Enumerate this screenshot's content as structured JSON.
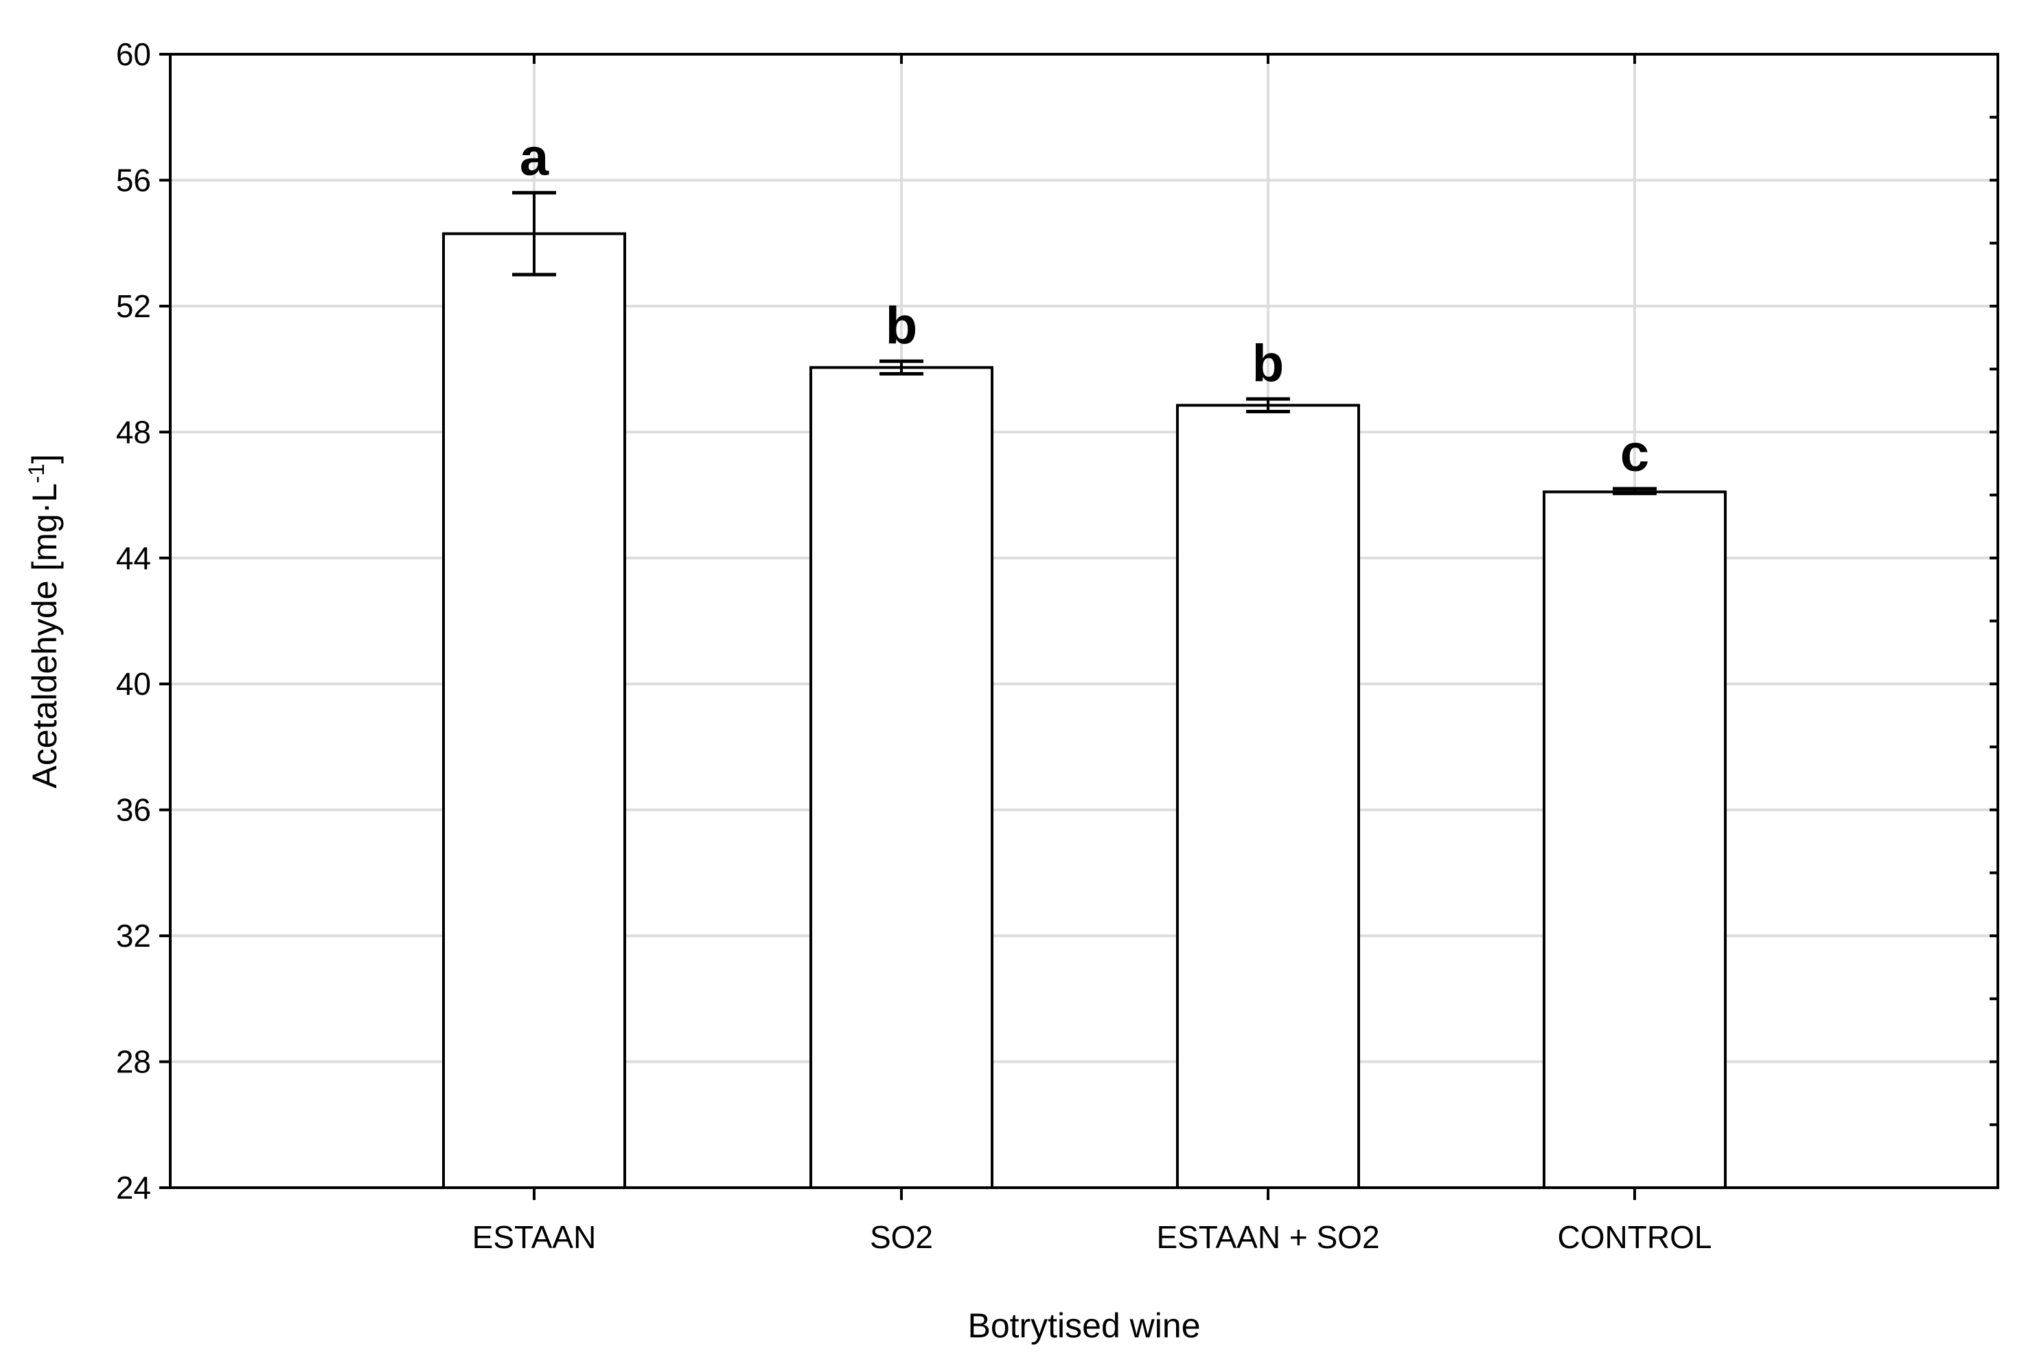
{
  "chart_data": {
    "type": "bar",
    "title": "",
    "xlabel": "Botrytised wine",
    "ylabel": "Acetaldehyde [mg·L",
    "ylabel_superscript": "-1",
    "ylabel_suffix": "]",
    "categories": [
      "ESTAAN",
      "SO2",
      "ESTAAN + SO2",
      "CONTROL"
    ],
    "series": [
      {
        "values": [
          54.3,
          50.05,
          48.85,
          46.1
        ],
        "error_low": [
          53.0,
          49.85,
          48.65,
          46.05
        ],
        "error_high": [
          55.6,
          50.25,
          49.05,
          46.2
        ],
        "significance_letters": [
          "a",
          "b",
          "b",
          "c"
        ]
      }
    ],
    "ylim": [
      24,
      60
    ],
    "yticks": [
      24,
      28,
      32,
      36,
      40,
      44,
      48,
      52,
      56,
      60
    ],
    "grid": true,
    "legend": "none",
    "bar_fill": "#ffffff",
    "bar_stroke": "#000000",
    "grid_color": "#dddddd"
  }
}
